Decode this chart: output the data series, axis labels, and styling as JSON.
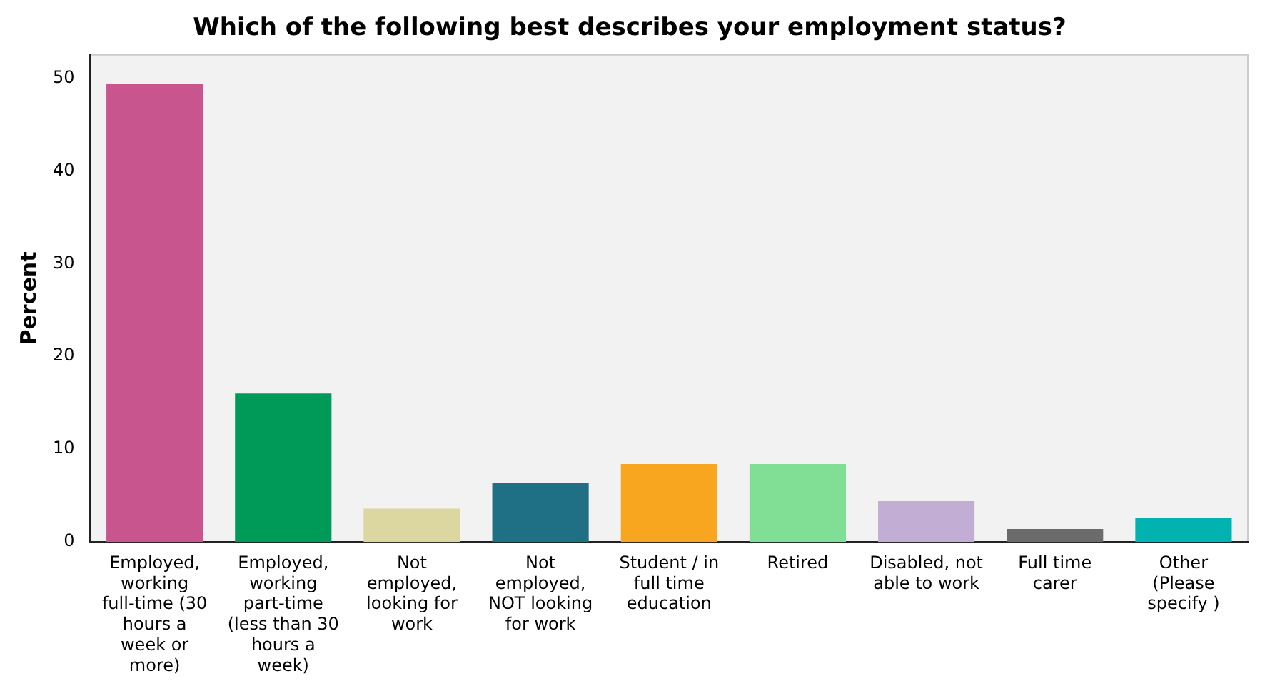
{
  "chart_data": {
    "type": "bar",
    "title": "Which of the following best describes your employment status?",
    "ylabel": "Percent",
    "categories": [
      "Employed, working full-time (30 hours a week or more)",
      "Employed, working part-time (less than 30 hours a week)",
      "Not employed, looking for work",
      "Not employed, NOT looking for work",
      "Student / in full time education",
      "Retired",
      "Disabled, not able to work",
      "Full time carer",
      "Other (Please specify )"
    ],
    "values": [
      49.4,
      16.0,
      3.6,
      6.4,
      8.4,
      8.4,
      4.4,
      1.4,
      2.6
    ],
    "colors": [
      "#c8558e",
      "#009a58",
      "#dcd6a0",
      "#1f6f85",
      "#f8a520",
      "#80df95",
      "#c2aed4",
      "#6b6b6b",
      "#00b3b0"
    ],
    "ylim": [
      0,
      52.5
    ],
    "yticks": [
      0,
      10,
      20,
      30,
      40,
      50
    ],
    "grid": false,
    "legend": false
  }
}
